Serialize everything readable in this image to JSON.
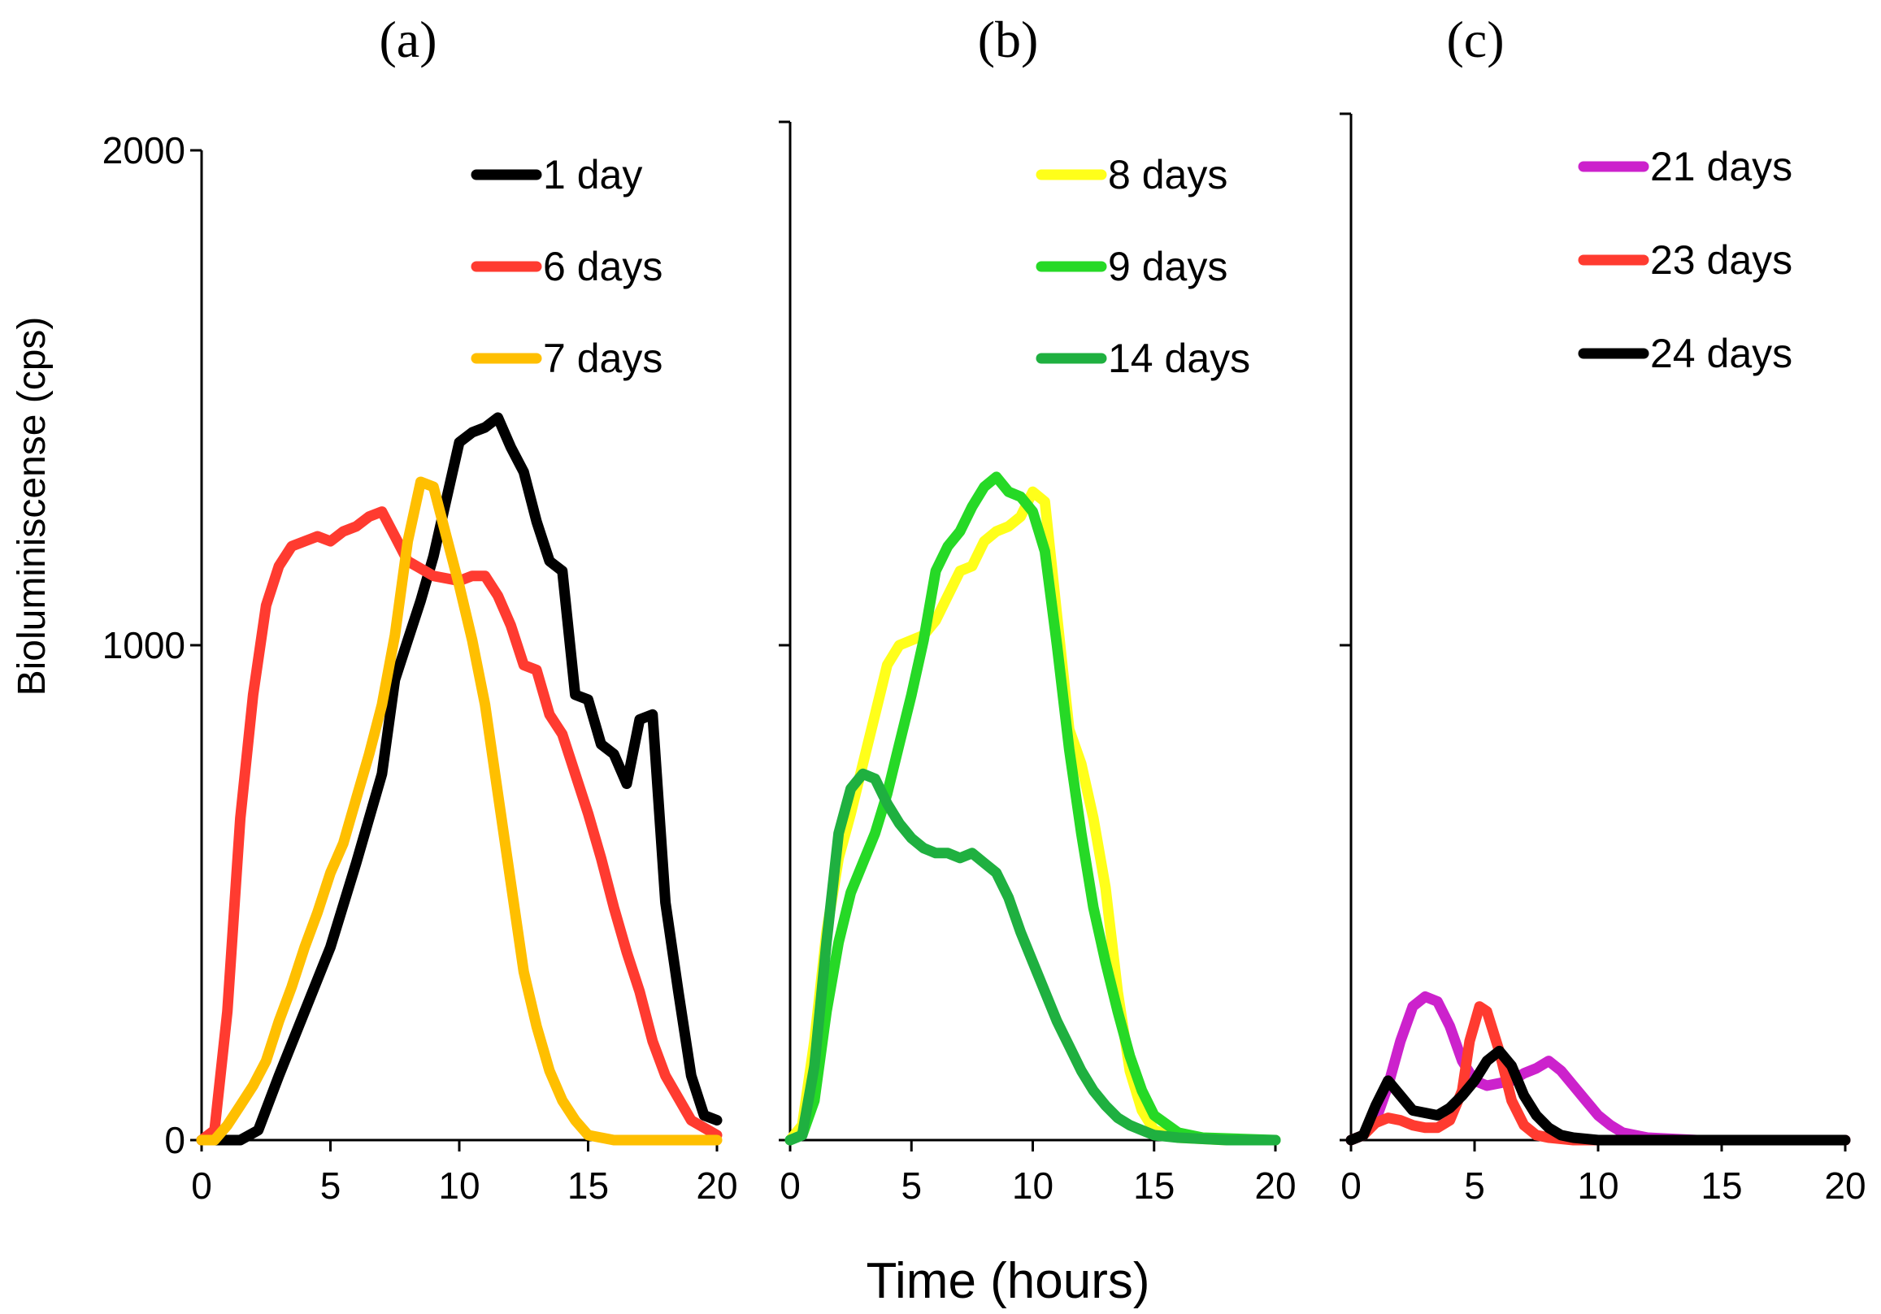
{
  "chart_data": [
    {
      "type": "line",
      "panel_label": "(a)",
      "xlim": [
        0,
        20
      ],
      "ylim": [
        0,
        2000
      ],
      "xticks": [
        "0",
        "5",
        "10",
        "15",
        "20"
      ],
      "yticks": [
        "0",
        "1000",
        "2000"
      ],
      "ylabel": "Bioluminiscense (cps)",
      "legend_position": "top-right",
      "series": [
        {
          "name": "1 day",
          "color": "#000000",
          "x": [
            0,
            1.5,
            2.2,
            3,
            4,
            5,
            6,
            7,
            7.5,
            8,
            8.5,
            9,
            10,
            10.5,
            11,
            11.5,
            12,
            12.5,
            13,
            13.5,
            14,
            14.5,
            15,
            15.5,
            16,
            16.5,
            17,
            17.5,
            18,
            18.5,
            19,
            19.5,
            20
          ],
          "y": [
            0,
            0,
            20,
            130,
            260,
            390,
            560,
            740,
            930,
            1010,
            1090,
            1180,
            1410,
            1430,
            1440,
            1460,
            1400,
            1350,
            1250,
            1170,
            1150,
            900,
            890,
            800,
            780,
            720,
            850,
            860,
            480,
            300,
            130,
            50,
            40
          ]
        },
        {
          "name": "6 days",
          "color": "#ff3b30",
          "x": [
            0,
            0.5,
            1,
            1.5,
            2,
            2.5,
            3,
            3.5,
            4,
            4.5,
            5,
            5.5,
            6,
            6.5,
            7,
            7.5,
            8,
            9,
            10,
            10.5,
            11,
            11.5,
            12,
            12.5,
            13,
            13.5,
            14,
            14.5,
            15,
            15.5,
            16,
            16.5,
            17,
            17.5,
            18,
            19,
            20
          ],
          "y": [
            0,
            20,
            260,
            650,
            900,
            1080,
            1160,
            1200,
            1210,
            1220,
            1210,
            1230,
            1240,
            1260,
            1270,
            1220,
            1170,
            1140,
            1130,
            1140,
            1140,
            1100,
            1040,
            960,
            950,
            860,
            820,
            740,
            660,
            570,
            470,
            380,
            300,
            200,
            130,
            40,
            10
          ]
        },
        {
          "name": "7 days",
          "color": "#ffbf00",
          "x": [
            0,
            0.5,
            1,
            1.5,
            2,
            2.5,
            3,
            3.5,
            4,
            4.5,
            5,
            5.5,
            6,
            6.5,
            7,
            7.5,
            8,
            8.5,
            9,
            9.5,
            10,
            10.5,
            11,
            11.5,
            12,
            12.5,
            13,
            13.5,
            14,
            14.5,
            15,
            16,
            18,
            20
          ],
          "y": [
            0,
            0,
            30,
            70,
            110,
            160,
            240,
            310,
            390,
            460,
            540,
            600,
            690,
            780,
            880,
            1020,
            1210,
            1330,
            1320,
            1220,
            1120,
            1010,
            880,
            700,
            520,
            340,
            230,
            140,
            80,
            40,
            10,
            0,
            0,
            0
          ]
        }
      ]
    },
    {
      "type": "line",
      "panel_label": "(b)",
      "xlim": [
        0,
        20
      ],
      "ylim": [
        0,
        2000
      ],
      "xticks": [
        "0",
        "5",
        "10",
        "15",
        "20"
      ],
      "yticks": [],
      "xlabel": "Time (hours)",
      "legend_position": "top-right",
      "series": [
        {
          "name": "8 days",
          "color": "#ffff1a",
          "x": [
            0,
            0.5,
            1,
            1.5,
            2,
            2.5,
            3,
            3.5,
            4,
            4.5,
            5,
            5.5,
            6,
            6.5,
            7,
            7.5,
            8,
            8.5,
            9,
            9.5,
            10,
            10.5,
            11,
            11.5,
            12,
            12.5,
            13,
            13.5,
            14,
            14.5,
            15,
            16,
            18,
            20
          ],
          "y": [
            0,
            30,
            200,
            420,
            570,
            660,
            760,
            860,
            960,
            1000,
            1010,
            1020,
            1050,
            1100,
            1150,
            1160,
            1210,
            1230,
            1240,
            1260,
            1310,
            1290,
            1060,
            830,
            760,
            650,
            510,
            300,
            140,
            60,
            20,
            5,
            0,
            0
          ]
        },
        {
          "name": "9 days",
          "color": "#26d926",
          "x": [
            0,
            0.5,
            1,
            1.5,
            2,
            2.5,
            3,
            3.5,
            4,
            4.5,
            5,
            5.5,
            6,
            6.5,
            7,
            7.5,
            8,
            8.5,
            9,
            9.5,
            10,
            10.5,
            11,
            11.5,
            12,
            12.5,
            13,
            13.5,
            14,
            14.5,
            15,
            16,
            17,
            20
          ],
          "y": [
            0,
            10,
            80,
            260,
            400,
            500,
            560,
            620,
            700,
            800,
            900,
            1010,
            1150,
            1200,
            1230,
            1280,
            1320,
            1340,
            1310,
            1300,
            1270,
            1190,
            1000,
            790,
            620,
            470,
            360,
            260,
            170,
            100,
            50,
            15,
            5,
            0
          ]
        },
        {
          "name": "14 days",
          "color": "#1fb040",
          "x": [
            0,
            0.5,
            1,
            1.5,
            2,
            2.5,
            3,
            3.5,
            4,
            4.5,
            5,
            5.5,
            6,
            6.5,
            7,
            7.5,
            8,
            8.5,
            9,
            9.5,
            10,
            10.5,
            11,
            11.5,
            12,
            12.5,
            13,
            13.5,
            14,
            15,
            16,
            18,
            20
          ],
          "y": [
            0,
            10,
            150,
            400,
            620,
            710,
            740,
            730,
            680,
            640,
            610,
            590,
            580,
            580,
            570,
            580,
            560,
            540,
            490,
            420,
            360,
            300,
            240,
            190,
            140,
            100,
            70,
            45,
            30,
            10,
            5,
            0,
            0
          ]
        }
      ]
    },
    {
      "type": "line",
      "panel_label": "(c)",
      "xlim": [
        0,
        20
      ],
      "ylim": [
        0,
        2000
      ],
      "xticks": [
        "0",
        "5",
        "10",
        "15",
        "20"
      ],
      "yticks": [],
      "legend_position": "top-right",
      "series": [
        {
          "name": "21 days",
          "color": "#cc22cc",
          "x": [
            0,
            0.5,
            1,
            1.5,
            2,
            2.5,
            3,
            3.5,
            4,
            4.5,
            5,
            5.5,
            6,
            6.5,
            7,
            7.5,
            8,
            8.5,
            9,
            9.5,
            10,
            10.5,
            11,
            12,
            14,
            16,
            18,
            20
          ],
          "y": [
            0,
            10,
            40,
            110,
            200,
            270,
            290,
            280,
            230,
            160,
            120,
            110,
            115,
            120,
            135,
            145,
            160,
            140,
            110,
            80,
            50,
            30,
            15,
            5,
            0,
            0,
            0,
            0
          ]
        },
        {
          "name": "23 days",
          "color": "#ff3b30",
          "x": [
            0,
            0.5,
            1,
            1.5,
            2,
            2.5,
            3,
            3.5,
            4,
            4.5,
            4.8,
            5.2,
            5.5,
            6,
            6.5,
            7,
            7.5,
            8,
            9,
            10,
            12,
            20
          ],
          "y": [
            0,
            10,
            35,
            45,
            40,
            30,
            25,
            25,
            40,
            100,
            200,
            270,
            260,
            180,
            80,
            30,
            10,
            5,
            0,
            0,
            0,
            0
          ]
        },
        {
          "name": "24 days",
          "color": "#000000",
          "x": [
            0,
            0.5,
            1,
            1.5,
            2,
            2.5,
            3,
            3.5,
            4,
            4.5,
            5,
            5.5,
            6,
            6.5,
            7,
            7.5,
            8,
            8.5,
            9,
            10,
            12,
            20
          ],
          "y": [
            0,
            10,
            70,
            120,
            90,
            60,
            55,
            50,
            65,
            90,
            120,
            160,
            180,
            150,
            90,
            50,
            25,
            10,
            5,
            0,
            0,
            0
          ]
        }
      ]
    }
  ]
}
